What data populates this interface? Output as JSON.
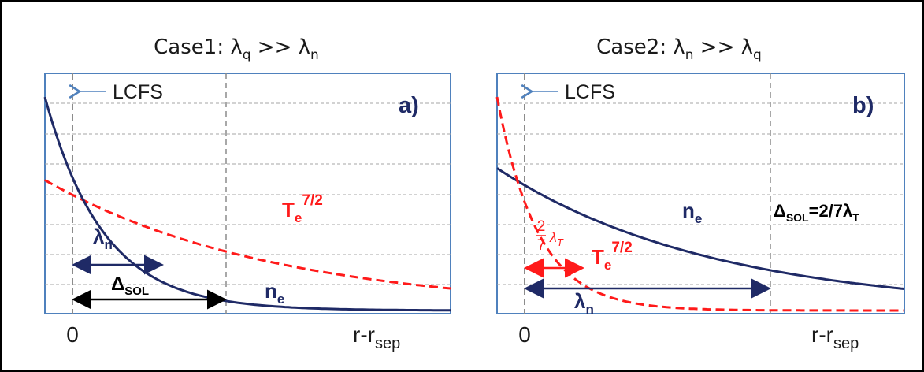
{
  "colors": {
    "frame": "#000000",
    "panel_border": "#4f81bd",
    "grid": "#a6a6a6",
    "vline": "#8c8c8c",
    "navy": "#1f2a66",
    "red": "#ff1a1a",
    "lcfs_arrow": "#4f81bd",
    "text": "#1a1a1a"
  },
  "panels": [
    {
      "title": {
        "prefix": "Case1: λ",
        "sub1": "q",
        "mid": " >> λ",
        "sub2": "n"
      },
      "lcfs_label": "LCFS",
      "panel_label": "a)",
      "x_zero_label": "0",
      "x_axis_label": {
        "main": "r-r",
        "sub": "sep"
      },
      "te_label": {
        "main": "T",
        "sub": "e",
        "sup": "7/2"
      },
      "ne_label": {
        "main": "n",
        "sub": "e"
      },
      "lambda_label": {
        "main": "λ",
        "sub": "n"
      },
      "delta_label": {
        "main": "Δ",
        "sub": "SOL"
      },
      "chart_data": {
        "type": "line",
        "x_range": [
          -0.1,
          1.5
        ],
        "y_range": [
          0,
          1
        ],
        "series": [
          {
            "name": "n_e",
            "x0": -0.1,
            "y0": 0.9,
            "decay": 0.23,
            "y_floor": 0.0
          },
          {
            "name": "T_e^7/2",
            "x0": -0.1,
            "y0": 0.55,
            "decay": 0.9,
            "y_floor": 0.0
          }
        ],
        "markers": {
          "lcfs_x": 0,
          "delta_sol_x": 0.6
        }
      }
    },
    {
      "title": {
        "prefix": "Case2: λ",
        "sub1": "n",
        "mid": " >> λ",
        "sub2": "q"
      },
      "lcfs_label": "LCFS",
      "panel_label": "b)",
      "x_zero_label": "0",
      "x_axis_label": {
        "main": "r-r",
        "sub": "sep"
      },
      "te_label": {
        "main": "T",
        "sub": "e",
        "sup": "7/2"
      },
      "ne_label": {
        "main": "n",
        "sub": "e"
      },
      "lambda_label": {
        "main": "λ",
        "sub": "n"
      },
      "delta_label": {
        "main": "Δ",
        "sub": "SOL",
        "rest": "=2/7λ",
        "sub2": "T"
      },
      "frac_label": {
        "num": "2",
        "den": "7",
        "sym": "λ",
        "sub": "T"
      },
      "chart_data": {
        "type": "line",
        "x_range": [
          -0.1,
          1.5
        ],
        "y_range": [
          0,
          1
        ],
        "series": [
          {
            "name": "n_e",
            "x0": -0.1,
            "y0": 0.6,
            "decay": 0.85,
            "y_floor": 0.0
          },
          {
            "name": "T_e^7/2",
            "x0": -0.1,
            "y0": 0.9,
            "decay": 0.16,
            "y_floor": 0.0
          }
        ],
        "markers": {
          "lcfs_x": 0,
          "delta_sol_x": 0.92
        }
      }
    }
  ]
}
